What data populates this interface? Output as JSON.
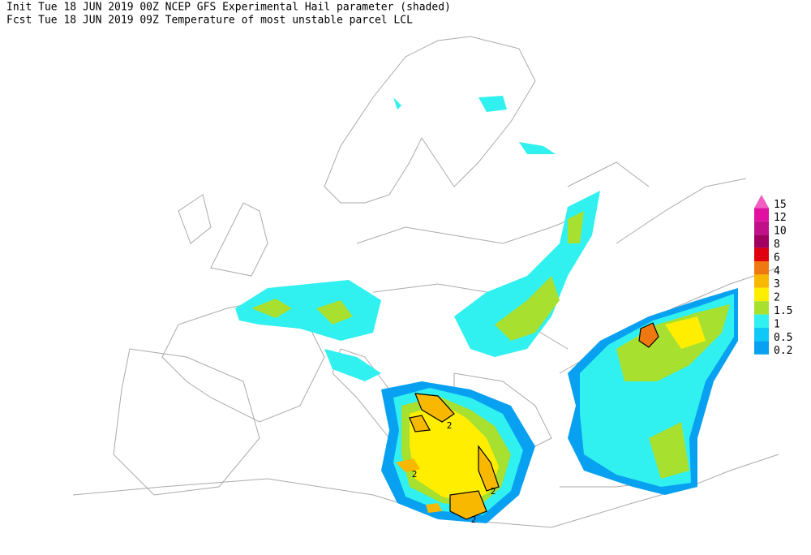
{
  "header": {
    "line1": "Init  Tue 18 JUN 2019 00Z  NCEP GFS Experimental Hail parameter (shaded)",
    "line2": "Fcst Tue 18 JUN 2019 09Z  Temperature of most unstable parcel LCL"
  },
  "legend": {
    "levels": [
      {
        "label": 15,
        "color": "#f060c0"
      },
      {
        "label": 12,
        "color": "#e010a0"
      },
      {
        "label": 10,
        "color": "#c0108a"
      },
      {
        "label": 8,
        "color": "#a00060"
      },
      {
        "label": 6,
        "color": "#e00010"
      },
      {
        "label": 4,
        "color": "#f07810"
      },
      {
        "label": 3,
        "color": "#f8b800"
      },
      {
        "label": 2,
        "color": "#ffee00"
      },
      {
        "label": 1.5,
        "color": "#a8e030"
      },
      {
        "label": 1,
        "color": "#30f0f0"
      },
      {
        "label": 0.5,
        "color": "#10c8f8"
      },
      {
        "label": 0.2,
        "color": "#08a0f0"
      }
    ]
  },
  "contour_labels": [
    2,
    2,
    2,
    2
  ]
}
